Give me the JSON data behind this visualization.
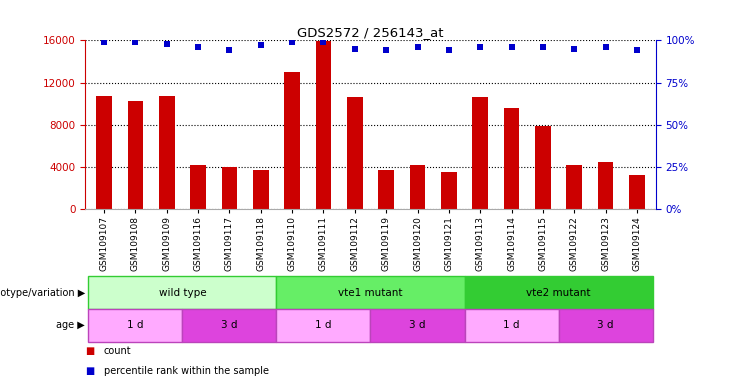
{
  "title": "GDS2572 / 256143_at",
  "samples": [
    "GSM109107",
    "GSM109108",
    "GSM109109",
    "GSM109116",
    "GSM109117",
    "GSM109118",
    "GSM109110",
    "GSM109111",
    "GSM109112",
    "GSM109119",
    "GSM109120",
    "GSM109121",
    "GSM109113",
    "GSM109114",
    "GSM109115",
    "GSM109122",
    "GSM109123",
    "GSM109124"
  ],
  "counts": [
    10700,
    10300,
    10700,
    4200,
    4000,
    3700,
    13000,
    15900,
    10600,
    3700,
    4200,
    3500,
    10600,
    9600,
    7900,
    4200,
    4500,
    3200
  ],
  "percentile_ranks": [
    99,
    99,
    98,
    96,
    94,
    97,
    99,
    99,
    95,
    94,
    96,
    94,
    96,
    96,
    96,
    95,
    96,
    94
  ],
  "bar_color": "#cc0000",
  "dot_color": "#0000cc",
  "left_axis_color": "#cc0000",
  "right_axis_color": "#0000cc",
  "ylim_left": [
    0,
    16000
  ],
  "ylim_right": [
    0,
    100
  ],
  "left_ticks": [
    0,
    4000,
    8000,
    12000,
    16000
  ],
  "right_ticks": [
    0,
    25,
    50,
    75,
    100
  ],
  "genotype_groups": [
    {
      "label": "wild type",
      "start": 0,
      "end": 6,
      "color": "#ccffcc",
      "border": "#33cc33"
    },
    {
      "label": "vte1 mutant",
      "start": 6,
      "end": 12,
      "color": "#66ee66",
      "border": "#33cc33"
    },
    {
      "label": "vte2 mutant",
      "start": 12,
      "end": 18,
      "color": "#33cc33",
      "border": "#33cc33"
    }
  ],
  "age_groups": [
    {
      "label": "1 d",
      "start": 0,
      "end": 3,
      "color": "#ffaaff"
    },
    {
      "label": "3 d",
      "start": 3,
      "end": 6,
      "color": "#dd44dd"
    },
    {
      "label": "1 d",
      "start": 6,
      "end": 9,
      "color": "#ffaaff"
    },
    {
      "label": "3 d",
      "start": 9,
      "end": 12,
      "color": "#dd44dd"
    },
    {
      "label": "1 d",
      "start": 12,
      "end": 15,
      "color": "#ffaaff"
    },
    {
      "label": "3 d",
      "start": 15,
      "end": 18,
      "color": "#dd44dd"
    }
  ],
  "legend_count_color": "#cc0000",
  "legend_pct_color": "#0000cc",
  "background_color": "#ffffff",
  "grid_color": "#000000"
}
